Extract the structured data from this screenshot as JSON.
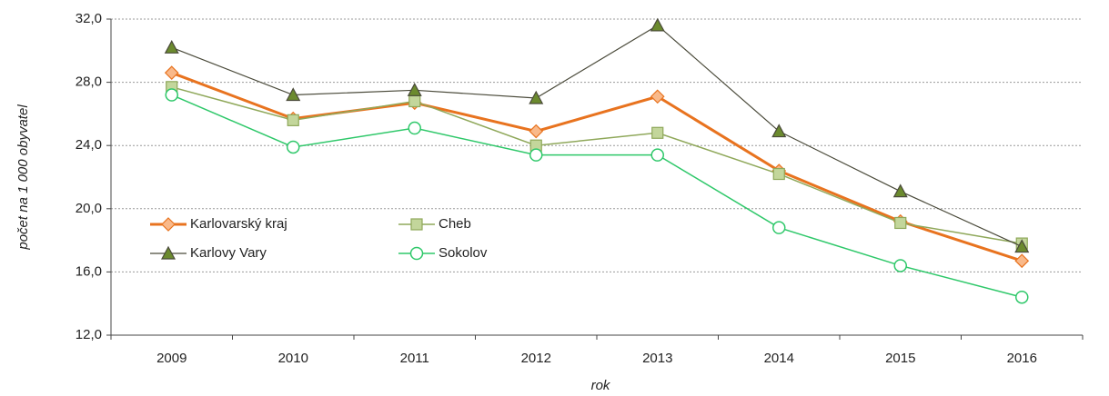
{
  "chart_data": {
    "type": "line",
    "categories": [
      "2009",
      "2010",
      "2011",
      "2012",
      "2013",
      "2014",
      "2015",
      "2016"
    ],
    "x_label": "rok",
    "y_label": "počet na 1 000 obyvatel",
    "ylim": [
      12,
      32
    ],
    "yticks": [
      {
        "value": 12,
        "label": "12,0"
      },
      {
        "value": 16,
        "label": "16,0"
      },
      {
        "value": 20,
        "label": "20,0"
      },
      {
        "value": 24,
        "label": "24,0"
      },
      {
        "value": 28,
        "label": "28,0"
      },
      {
        "value": 32,
        "label": "32,0"
      }
    ],
    "grid": true,
    "series": [
      {
        "name": "Karlovarský kraj",
        "color": "#e8731f",
        "marker": "diamond",
        "marker_fill": "#f9b98a",
        "values": [
          28.6,
          25.7,
          26.7,
          24.9,
          27.1,
          22.4,
          19.2,
          16.7
        ]
      },
      {
        "name": "Cheb",
        "color": "#8fa85a",
        "marker": "square",
        "marker_fill": "#c3d69b",
        "values": [
          27.7,
          25.6,
          26.8,
          24.0,
          24.8,
          22.2,
          19.1,
          17.8
        ]
      },
      {
        "name": "Karlovy Vary",
        "color": "#4a4a3a",
        "marker": "triangle",
        "marker_fill": "#6b8a2e",
        "values": [
          30.2,
          27.2,
          27.5,
          27.0,
          31.6,
          24.9,
          21.1,
          17.6
        ]
      },
      {
        "name": "Sokolov",
        "color": "#2fc86a",
        "marker": "circle",
        "marker_fill": "#ffffff",
        "values": [
          27.2,
          23.9,
          25.1,
          23.4,
          23.4,
          18.8,
          16.4,
          14.4
        ]
      }
    ]
  }
}
